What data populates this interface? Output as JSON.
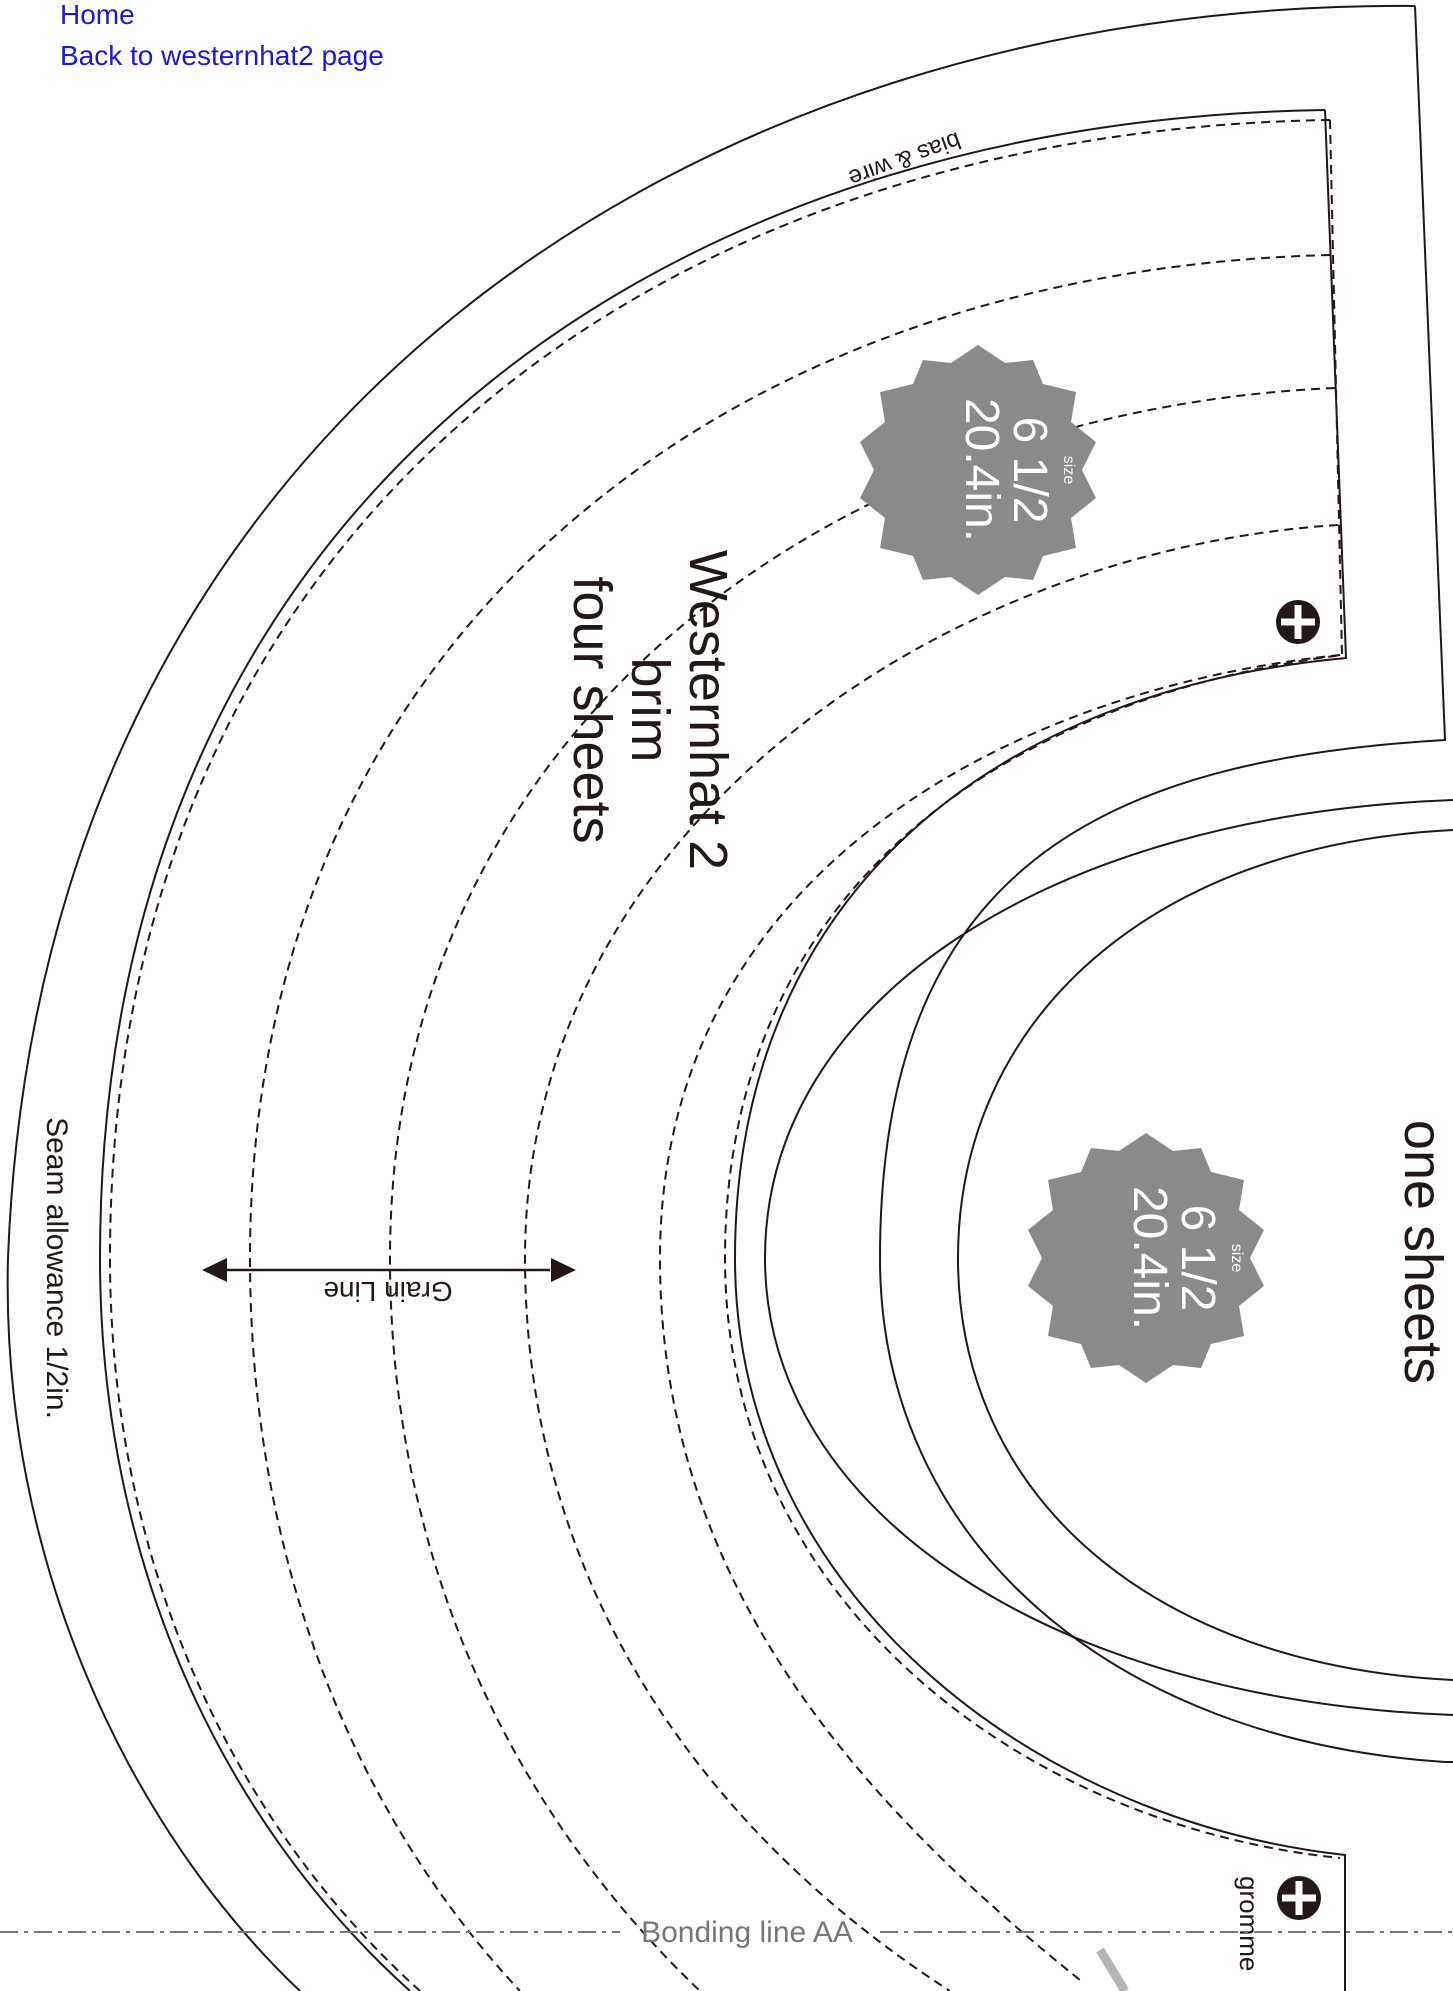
{
  "nav": {
    "home_label": "Home",
    "back_label": "Back to westernhat2 page"
  },
  "pattern": {
    "title": "Westernhat 2",
    "piece": "brim",
    "sheets": "four sheets",
    "second_piece_sheets": "one sheets",
    "bias_label": "bias & wire",
    "grain_label": "Grain Line",
    "seam_label": "Seam allowance 1/2in.",
    "bonding_label": "Bonding line AA",
    "grommet_label": "gromme",
    "badge_top": {
      "size_label": "size",
      "size": "6 1/2",
      "measure": "20.4in."
    },
    "badge_mid": {
      "size_label": "size",
      "size": "6 1/2",
      "measure": "20.4in."
    }
  },
  "colors": {
    "link": "#1a1ad6",
    "line": "#231815",
    "badge": "#8a8a8a",
    "bonding": "#777777"
  }
}
